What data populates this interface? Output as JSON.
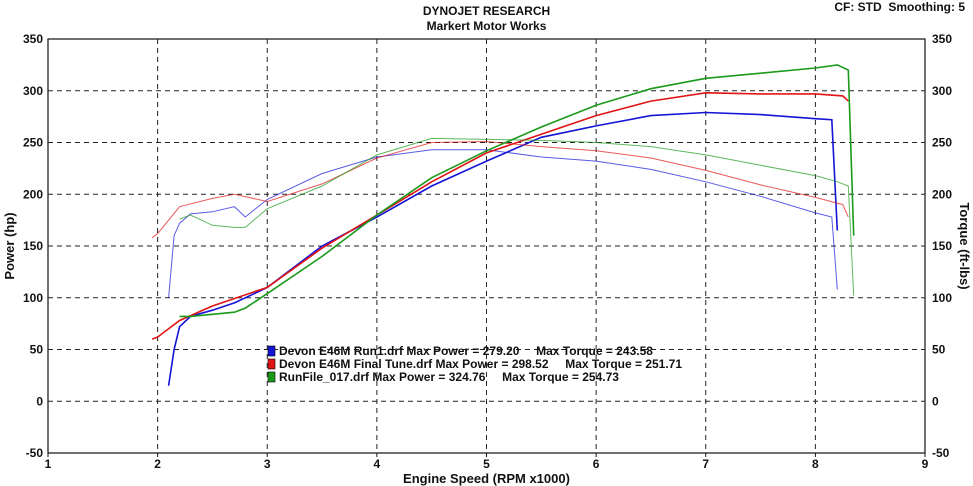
{
  "header": {
    "title": "DYNOJET RESEARCH",
    "subtitle": "Markert Motor Works",
    "cf_label": "CF: STD",
    "smoothing_label": "Smoothing: 5"
  },
  "chart_data": {
    "type": "line",
    "xlabel": "Engine Speed (RPM x1000)",
    "ylabel_left": "Power (hp)",
    "ylabel_right": "Torque (ft-lbs)",
    "xlim": [
      1,
      9
    ],
    "ylim": [
      -50,
      350
    ],
    "x_ticks": [
      1,
      2,
      3,
      4,
      5,
      6,
      7,
      8,
      9
    ],
    "y_ticks": [
      -50,
      0,
      50,
      100,
      150,
      200,
      250,
      300,
      350
    ],
    "grid": true,
    "legend_position": "lower-center",
    "series": [
      {
        "name": "Devon E46M Run1.drf",
        "color": "#1414d8",
        "max_power_label": "Max Power = 279.20",
        "max_torque_label": "Max Torque = 243.58",
        "power": {
          "x": [
            2.1,
            2.15,
            2.2,
            2.3,
            2.5,
            2.7,
            2.8,
            3.0,
            3.5,
            4.0,
            4.5,
            5.0,
            5.5,
            6.0,
            6.5,
            7.0,
            7.5,
            8.0,
            8.15,
            8.2
          ],
          "y": [
            15,
            50,
            72,
            82,
            88,
            95,
            100,
            110,
            150,
            178,
            208,
            232,
            255,
            266,
            276,
            279,
            277,
            273,
            272,
            165
          ]
        },
        "torque": {
          "x": [
            2.1,
            2.15,
            2.2,
            2.3,
            2.5,
            2.7,
            2.8,
            3.0,
            3.5,
            4.0,
            4.5,
            5.0,
            5.5,
            6.0,
            6.5,
            7.0,
            7.5,
            8.0,
            8.15,
            8.2
          ],
          "y": [
            100,
            160,
            172,
            181,
            183,
            188,
            178,
            195,
            220,
            236,
            243,
            243,
            236,
            232,
            224,
            212,
            198,
            182,
            178,
            108
          ]
        }
      },
      {
        "name": "Devon E46M Final Tune.drf",
        "color": "#e01414",
        "max_power_label": "Max Power = 298.52",
        "max_torque_label": "Max Torque = 251.71",
        "power": {
          "x": [
            1.95,
            2.0,
            2.2,
            2.5,
            3.0,
            3.5,
            4.0,
            4.5,
            5.0,
            5.5,
            6.0,
            6.5,
            7.0,
            7.5,
            8.0,
            8.25,
            8.3
          ],
          "y": [
            60,
            62,
            78,
            92,
            110,
            148,
            180,
            212,
            240,
            258,
            276,
            290,
            298,
            297,
            297,
            295,
            290
          ]
        },
        "torque": {
          "x": [
            1.95,
            2.0,
            2.2,
            2.5,
            2.7,
            3.0,
            3.5,
            4.0,
            4.5,
            5.0,
            5.5,
            6.0,
            6.5,
            7.0,
            7.5,
            8.0,
            8.25,
            8.3
          ],
          "y": [
            158,
            162,
            188,
            196,
            200,
            193,
            210,
            235,
            250,
            251,
            246,
            242,
            235,
            223,
            209,
            197,
            190,
            178
          ]
        }
      },
      {
        "name": "RunFile_017.drf",
        "color": "#1a9a1a",
        "max_power_label": "Max Power = 324.76",
        "max_torque_label": "Max Torque = 254.73",
        "power": {
          "x": [
            2.2,
            2.3,
            2.5,
            2.7,
            2.8,
            3.0,
            3.5,
            4.0,
            4.5,
            5.0,
            5.5,
            6.0,
            6.5,
            7.0,
            7.5,
            8.0,
            8.2,
            8.3,
            8.35
          ],
          "y": [
            82,
            82,
            84,
            86,
            90,
            104,
            140,
            180,
            216,
            242,
            265,
            286,
            302,
            312,
            317,
            322,
            325,
            320,
            160
          ]
        },
        "torque": {
          "x": [
            2.2,
            2.3,
            2.5,
            2.7,
            2.8,
            3.0,
            3.5,
            4.0,
            4.5,
            5.0,
            5.5,
            6.0,
            6.5,
            7.0,
            7.5,
            8.0,
            8.2,
            8.3,
            8.35
          ],
          "y": [
            176,
            180,
            170,
            168,
            168,
            186,
            208,
            238,
            254,
            253,
            252,
            250,
            246,
            238,
            228,
            218,
            212,
            208,
            102
          ]
        }
      }
    ]
  }
}
